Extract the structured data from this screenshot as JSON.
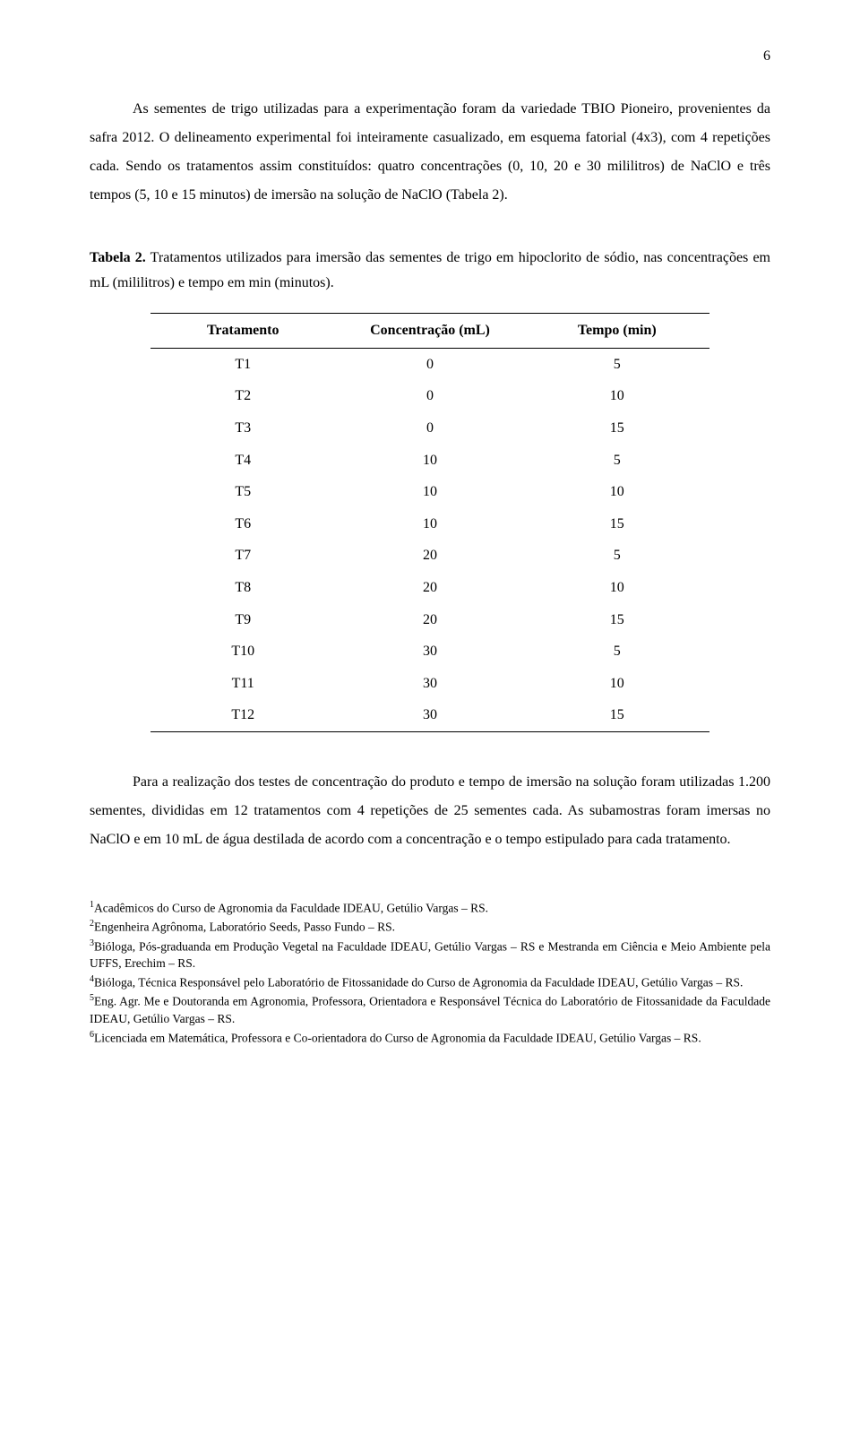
{
  "page_number": "6",
  "paragraphs": {
    "p1": "As sementes de trigo utilizadas para a experimentação foram da variedade TBIO Pioneiro, provenientes da safra 2012. O delineamento experimental foi inteiramente casualizado, em esquema fatorial (4x3), com 4 repetições cada. Sendo os tratamentos assim constituídos: quatro concentrações (0, 10, 20 e 30 mililitros) de NaClO  e três tempos (5, 10 e 15 minutos) de imersão na solução de NaClO (Tabela 2).",
    "p2": "Para a realização dos testes de concentração do produto e tempo de imersão na solução foram utilizadas 1.200 sementes, divididas em 12 tratamentos com 4 repetições de 25 sementes cada. As subamostras foram imersas no NaClO e em 10 mL de água destilada de acordo com a concentração e o tempo estipulado para cada tratamento."
  },
  "table_caption": {
    "label": "Tabela 2.",
    "text": " Tratamentos utilizados para imersão das sementes de trigo em hipoclorito de sódio, nas concentrações em mL (mililitros) e tempo em min (minutos)."
  },
  "table": {
    "type": "table",
    "columns": [
      "Tratamento",
      "Concentração (mL)",
      "Tempo (min)"
    ],
    "column_align": [
      "center",
      "center",
      "center"
    ],
    "rows": [
      [
        "T1",
        "0",
        "5"
      ],
      [
        "T2",
        "0",
        "10"
      ],
      [
        "T3",
        "0",
        "15"
      ],
      [
        "T4",
        "10",
        "5"
      ],
      [
        "T5",
        "10",
        "10"
      ],
      [
        "T6",
        "10",
        "15"
      ],
      [
        "T7",
        "20",
        "5"
      ],
      [
        "T8",
        "20",
        "10"
      ],
      [
        "T9",
        "20",
        "15"
      ],
      [
        "T10",
        "30",
        "5"
      ],
      [
        "T11",
        "30",
        "10"
      ],
      [
        "T12",
        "30",
        "15"
      ]
    ],
    "border_color": "#000000",
    "background_color": "#ffffff",
    "font_size": 16
  },
  "footnotes": [
    {
      "sup": "1",
      "text": "Acadêmicos do Curso de Agronomia da Faculdade IDEAU, Getúlio Vargas – RS."
    },
    {
      "sup": "2",
      "text": "Engenheira Agrônoma, Laboratório Seeds, Passo Fundo – RS."
    },
    {
      "sup": "3",
      "text": "Bióloga, Pós-graduanda em Produção Vegetal na Faculdade IDEAU, Getúlio Vargas – RS e Mestranda em Ciência e Meio Ambiente pela UFFS, Erechim – RS."
    },
    {
      "sup": "4",
      "text": "Bióloga, Técnica Responsável pelo Laboratório de Fitossanidade do Curso de Agronomia da Faculdade IDEAU, Getúlio Vargas – RS."
    },
    {
      "sup": "5",
      "text": "Eng. Agr. Me e Doutoranda em Agronomia, Professora, Orientadora e Responsável Técnica do Laboratório de Fitossanidade da Faculdade IDEAU, Getúlio Vargas – RS."
    },
    {
      "sup": "6",
      "text": "Licenciada em Matemática, Professora e Co-orientadora do Curso de Agronomia da Faculdade IDEAU, Getúlio Vargas – RS."
    }
  ]
}
